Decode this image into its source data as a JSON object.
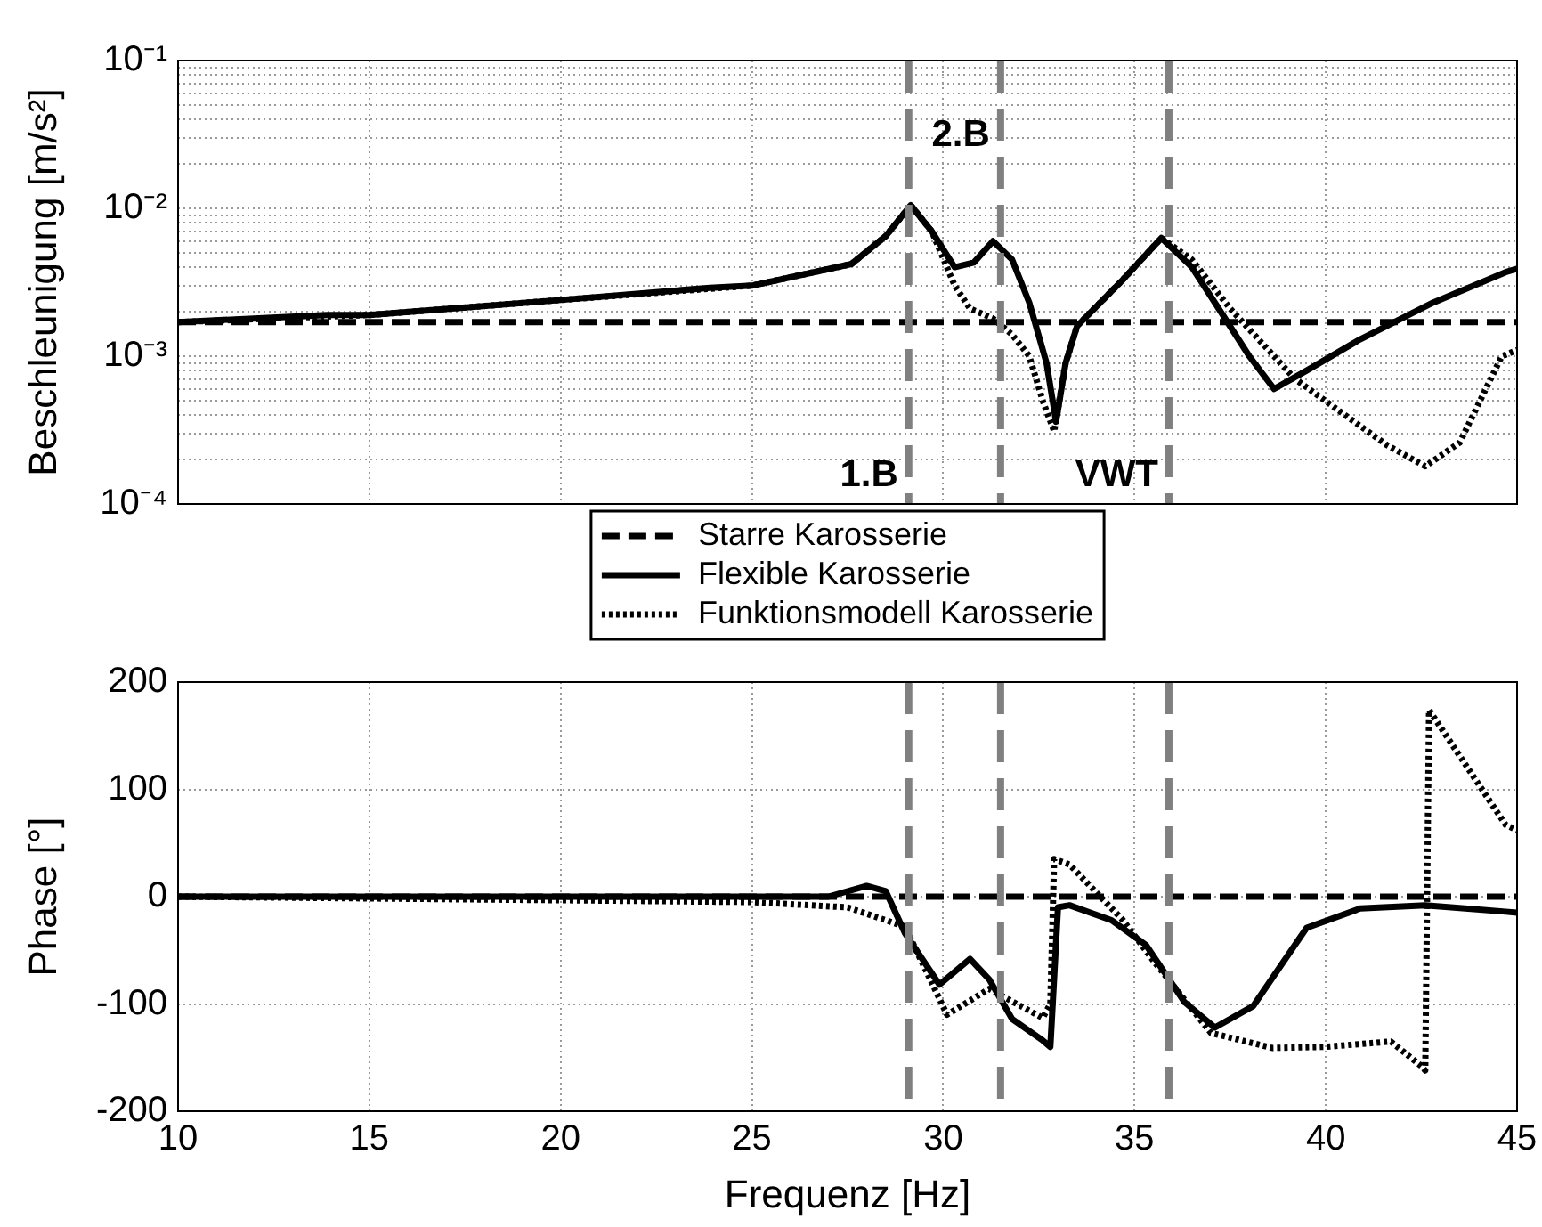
{
  "chart_data": [
    {
      "type": "line",
      "ylabel": "Beschleunigung [m/s²]",
      "log": "y",
      "grid": true,
      "legend": "bottom",
      "tick_labels": "y",
      "xlim": [
        10,
        45
      ],
      "xticks": [
        10,
        15,
        20,
        25,
        30,
        35,
        40,
        45
      ],
      "ylim": [
        0.0001,
        0.1
      ],
      "yticks": [
        {
          "value": 0.0001,
          "label": "10⁻⁴"
        },
        {
          "value": 0.0002,
          "label": null
        },
        {
          "value": 0.0003,
          "label": null
        },
        {
          "value": 0.0004,
          "label": null
        },
        {
          "value": 0.0005,
          "label": null
        },
        {
          "value": 0.0006,
          "label": null
        },
        {
          "value": 0.0007,
          "label": null
        },
        {
          "value": 0.0008,
          "label": null
        },
        {
          "value": 0.0009,
          "label": null
        },
        {
          "value": 0.001,
          "label": "10⁻³"
        },
        {
          "value": 0.002,
          "label": null
        },
        {
          "value": 0.003,
          "label": null
        },
        {
          "value": 0.004,
          "label": null
        },
        {
          "value": 0.005,
          "label": null
        },
        {
          "value": 0.006,
          "label": null
        },
        {
          "value": 0.007,
          "label": null
        },
        {
          "value": 0.008,
          "label": null
        },
        {
          "value": 0.009,
          "label": null
        },
        {
          "value": 0.01,
          "label": "10⁻²"
        },
        {
          "value": 0.02,
          "label": null
        },
        {
          "value": 0.03,
          "label": null
        },
        {
          "value": 0.04,
          "label": null
        },
        {
          "value": 0.05,
          "label": null
        },
        {
          "value": 0.06,
          "label": null
        },
        {
          "value": 0.07,
          "label": null
        },
        {
          "value": 0.08,
          "label": null
        },
        {
          "value": 0.09,
          "label": null
        },
        {
          "value": 0.1,
          "label": "10⁻¹"
        }
      ],
      "ref_lines": [
        {
          "axis": "x",
          "value": 29.1,
          "label": "1.B",
          "color": "#808080",
          "line_style": "dashed"
        },
        {
          "axis": "x",
          "value": 31.5,
          "label": "2.B",
          "color": "#808080",
          "line_style": "dashed"
        },
        {
          "axis": "x",
          "value": 35.9,
          "label": "VWT",
          "color": "#808080",
          "line_style": "dashed"
        }
      ],
      "series": [
        {
          "name": "Starre Karosserie",
          "color": "#000000",
          "line_style": "dashed",
          "x": [
            10,
            15,
            20,
            25,
            30,
            35,
            40,
            45
          ],
          "values": [
            0.0017,
            0.0017,
            0.0017,
            0.0017,
            0.0017,
            0.0017,
            0.0017,
            0.0017
          ]
        },
        {
          "name": "Flexible Karosserie",
          "color": "#000000",
          "line_style": "solid",
          "x": [
            10,
            13.9,
            15,
            20,
            23.9,
            25,
            27.6,
            28.5,
            29.15,
            29.7,
            30.3,
            30.8,
            31.3,
            31.8,
            32.25,
            32.7,
            32.95,
            33.2,
            33.5,
            34.7,
            35.7,
            36.5,
            37.2,
            38,
            38.65,
            39.5,
            40.9,
            42.8,
            44.7,
            45
          ],
          "values": [
            0.0017,
            0.0019,
            0.0019,
            0.0024,
            0.0029,
            0.003,
            0.0042,
            0.0065,
            0.0105,
            0.007,
            0.004,
            0.0043,
            0.006,
            0.0045,
            0.0023,
            0.0009,
            0.00036,
            0.0009,
            0.0016,
            0.0033,
            0.0063,
            0.004,
            0.0021,
            0.001,
            0.0006,
            0.0008,
            0.0013,
            0.0023,
            0.0037,
            0.0039
          ]
        },
        {
          "name": "Funktionsmodell Karosserie",
          "color": "#000000",
          "line_style": "dotted",
          "x": [
            10,
            15,
            20,
            25,
            27.6,
            28.5,
            29.15,
            29.7,
            30.3,
            30.7,
            31.3,
            31.8,
            32.25,
            32.6,
            32.9,
            33.2,
            33.5,
            34.7,
            35.7,
            36.5,
            37.5,
            38.5,
            39.2,
            40.5,
            41.6,
            42.6,
            43.5,
            44.6,
            45
          ],
          "values": [
            0.0017,
            0.0019,
            0.0024,
            0.003,
            0.0042,
            0.0065,
            0.0105,
            0.007,
            0.003,
            0.0021,
            0.0018,
            0.0014,
            0.001,
            0.0005,
            0.00031,
            0.0009,
            0.0016,
            0.0033,
            0.0063,
            0.0045,
            0.0021,
            0.0011,
            0.0007,
            0.0004,
            0.00025,
            0.00018,
            0.00026,
            0.001,
            0.0011
          ]
        }
      ]
    },
    {
      "type": "line",
      "xlabel": "Frequenz [Hz]",
      "ylabel": "Phase [°]",
      "grid": true,
      "xlim": [
        10,
        45
      ],
      "xticks": [
        10,
        15,
        20,
        25,
        30,
        35,
        40,
        45
      ],
      "ylim": [
        -200,
        200
      ],
      "yticks": [
        -200,
        -100,
        0,
        100,
        200
      ],
      "ref_lines": [
        {
          "axis": "x",
          "value": 29.1,
          "color": "#808080",
          "line_style": "dashed"
        },
        {
          "axis": "x",
          "value": 31.5,
          "color": "#808080",
          "line_style": "dashed"
        },
        {
          "axis": "x",
          "value": 35.9,
          "color": "#808080",
          "line_style": "dashed"
        }
      ],
      "series": [
        {
          "color": "#000000",
          "line_style": "dashed",
          "x": [
            10,
            15,
            20,
            25,
            30,
            35,
            40,
            45
          ],
          "values": [
            0,
            0,
            0,
            0,
            0,
            0,
            0,
            0
          ]
        },
        {
          "color": "#000000",
          "line_style": "solid",
          "x": [
            10,
            25,
            27,
            28,
            28.5,
            29,
            29.9,
            30.7,
            31.2,
            31.8,
            32.6,
            32.8,
            33,
            33.3,
            34.4,
            35.3,
            36.3,
            37.1,
            38.1,
            39.5,
            40.9,
            42.6,
            44.7,
            45
          ],
          "values": [
            0,
            0,
            0,
            10,
            5,
            -34,
            -82,
            -58,
            -77,
            -114,
            -134,
            -140,
            -10,
            -8,
            -22,
            -45,
            -98,
            -122,
            -102,
            -29,
            -11,
            -8,
            -14,
            -15
          ]
        },
        {
          "color": "#000000",
          "line_style": "dotted",
          "x": [
            10,
            25,
            27.5,
            29,
            30.1,
            31.2,
            32.6,
            32.8,
            32.9,
            33.3,
            34.7,
            35.5,
            37,
            38.6,
            40,
            41.7,
            42.5,
            42.6,
            42.7,
            44.7,
            45
          ],
          "values": [
            0,
            -5,
            -10,
            -28,
            -110,
            -86,
            -113,
            -100,
            35,
            30,
            -22,
            -60,
            -127,
            -141,
            -140,
            -135,
            -158,
            -162,
            174,
            67,
            62
          ]
        }
      ]
    }
  ]
}
